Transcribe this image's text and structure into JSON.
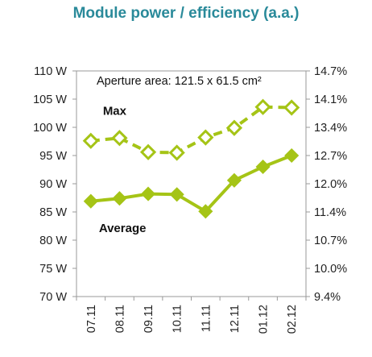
{
  "title": "Module power / efficiency (a.a.)",
  "chart_data": {
    "type": "line",
    "title": "Module power / efficiency (a.a.)",
    "annotation": "Aperture  area: 121.5 x 61.5 cm²",
    "categories": [
      "07.11",
      "08.11",
      "09.11",
      "10.11",
      "11.11",
      "12.11",
      "01.12",
      "02.12"
    ],
    "ylim": [
      70,
      110
    ],
    "y_ticks": [
      "70 W",
      "75 W",
      "80 W",
      "85 W",
      "90 W",
      "95 W",
      "100 W",
      "105 W",
      "110 W"
    ],
    "y2_ticks": [
      "9.4%",
      "10.0%",
      "10.7%",
      "11.4%",
      "12.0%",
      "12.7%",
      "13.4%",
      "14.1%",
      "14.7%"
    ],
    "grid": false,
    "series": [
      {
        "name": "Max",
        "style": "dashed",
        "marker": "open-diamond",
        "values": [
          97.6,
          98.1,
          95.6,
          95.5,
          98.2,
          99.9,
          103.6,
          103.5
        ]
      },
      {
        "name": "Average",
        "style": "solid",
        "marker": "filled-diamond",
        "values": [
          86.9,
          87.4,
          88.2,
          88.1,
          85.1,
          90.6,
          93.0,
          95.0
        ]
      }
    ],
    "colors": {
      "series": "#a5c416",
      "frame": "#999999"
    }
  }
}
